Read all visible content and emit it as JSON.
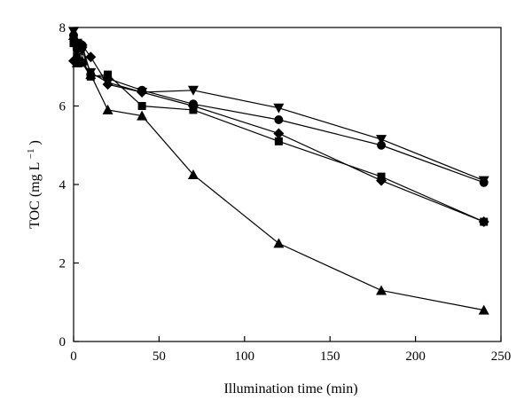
{
  "chart_data": {
    "type": "line",
    "xlabel": "Illumination time (min)",
    "ylabel": "TOC (mg L",
    "ylabel_sup": "−1",
    "ylabel_close": ")",
    "xlim": [
      0,
      250
    ],
    "ylim": [
      0,
      8
    ],
    "xticks": [
      0,
      50,
      100,
      150,
      200,
      250
    ],
    "yticks": [
      0,
      2,
      4,
      6,
      8
    ],
    "grid": false,
    "legend": "none",
    "series": [
      {
        "marker": "circle",
        "x": [
          0,
          2,
          5,
          10,
          20,
          40,
          70,
          120,
          180,
          240
        ],
        "y": [
          7.8,
          7.45,
          7.55,
          6.8,
          6.7,
          6.4,
          6.05,
          5.65,
          5.0,
          4.05
        ]
      },
      {
        "marker": "square",
        "x": [
          0,
          2,
          5,
          10,
          20,
          40,
          70,
          120,
          180,
          240
        ],
        "y": [
          7.6,
          7.25,
          7.1,
          6.75,
          6.8,
          6.0,
          5.9,
          5.1,
          4.2,
          3.05
        ]
      },
      {
        "marker": "triangle-up",
        "x": [
          0,
          2,
          5,
          10,
          20,
          40,
          70,
          120,
          180,
          240
        ],
        "y": [
          7.8,
          7.1,
          7.15,
          6.8,
          5.9,
          5.75,
          4.25,
          2.5,
          1.3,
          0.8
        ]
      },
      {
        "marker": "triangle-down",
        "x": [
          0,
          2,
          5,
          10,
          20,
          40,
          70,
          120,
          180,
          240
        ],
        "y": [
          7.9,
          7.6,
          7.4,
          6.85,
          6.6,
          6.35,
          6.4,
          5.95,
          5.15,
          4.1
        ]
      },
      {
        "marker": "diamond",
        "x": [
          0,
          2,
          5,
          10,
          20,
          40,
          70,
          120,
          180,
          240
        ],
        "y": [
          7.15,
          7.55,
          7.55,
          7.25,
          6.55,
          6.35,
          6.0,
          5.3,
          4.1,
          3.05
        ]
      }
    ]
  }
}
